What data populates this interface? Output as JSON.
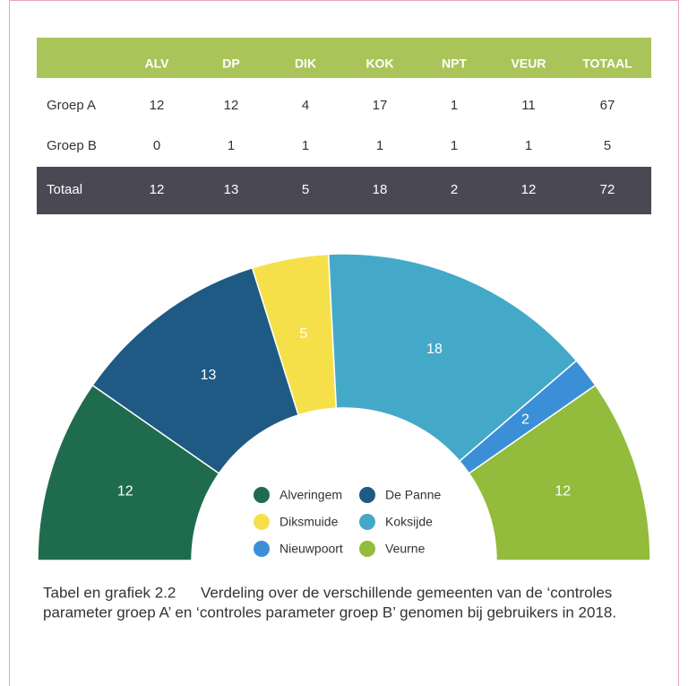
{
  "table": {
    "header": [
      "",
      "ALV",
      "DP",
      "DIK",
      "KOK",
      "NPT",
      "VEUR",
      "TOTAAL"
    ],
    "rows": [
      [
        "Groep A",
        "12",
        "12",
        "4",
        "17",
        "1",
        "11",
        "67"
      ],
      [
        "Groep B",
        "0",
        "1",
        "1",
        "1",
        "1",
        "1",
        "5"
      ]
    ],
    "total": [
      "Totaal",
      "12",
      "13",
      "5",
      "18",
      "2",
      "12",
      "72"
    ]
  },
  "chart_data": {
    "type": "pie",
    "categories": [
      "Alveringem",
      "De Panne",
      "Diksmuide",
      "Koksijde",
      "Nieuwpoort",
      "Veurne"
    ],
    "values": [
      12,
      13,
      5,
      18,
      2,
      12
    ],
    "colors": [
      "#1f6b4e",
      "#1f5a85",
      "#f6e04a",
      "#44a9c8",
      "#3b8fd6",
      "#93bb3c"
    ]
  },
  "caption": {
    "label": "Tabel en grafiek 2.2",
    "lines": [
      "Verdeling over de verschillende gemeenten van de ‘controles",
      "parameter groep A’ en ‘controles parameter groep B’ genomen bij gebruikers in 2018."
    ]
  }
}
